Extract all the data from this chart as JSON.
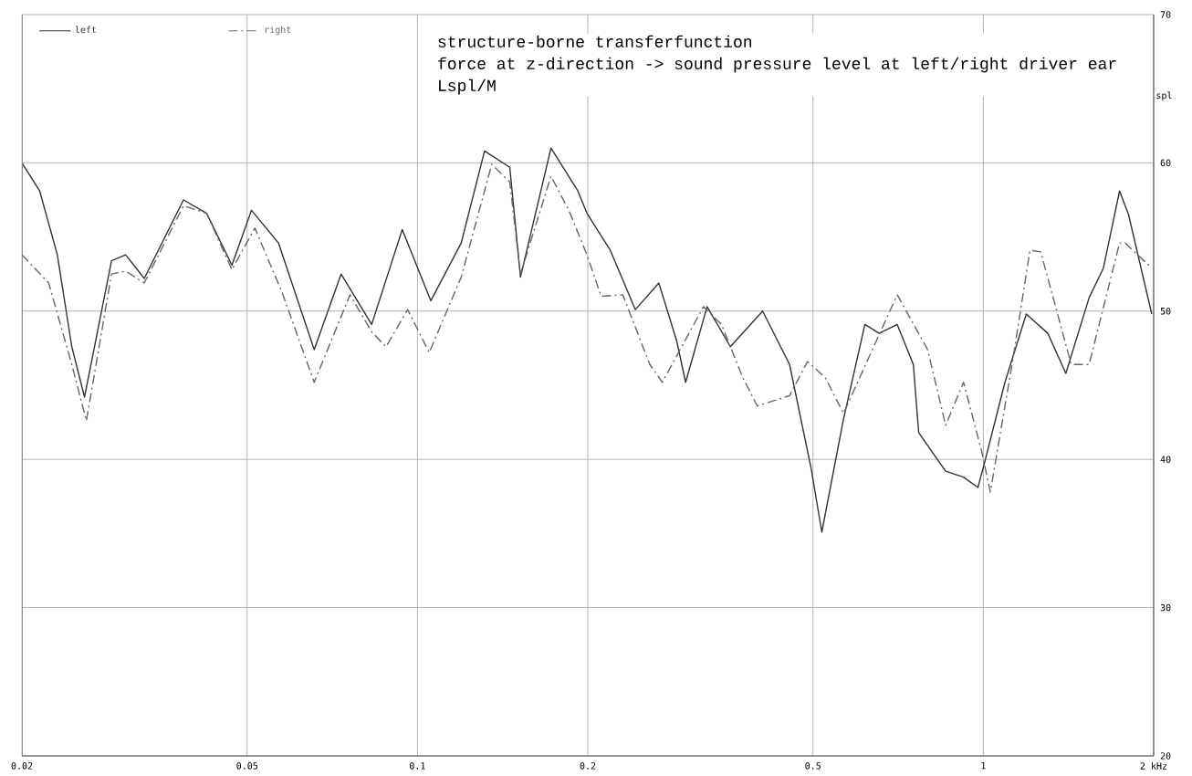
{
  "chart_data": {
    "type": "line",
    "title": "structure-borne transferfunction",
    "subtitle": "force at z-direction -> sound pressure level at left/right driver ear",
    "annotations": [
      "Lspl/M"
    ],
    "ylabel": "spl",
    "log": "x",
    "xlim": [
      0.02,
      2
    ],
    "ylim": [
      20,
      70
    ],
    "xticks": [
      0.02,
      0.05,
      0.1,
      0.2,
      0.5,
      1,
      {
        "value": 2,
        "label": "2 kHz"
      }
    ],
    "yticks": [
      20,
      30,
      40,
      50,
      60,
      70
    ],
    "grid": true,
    "legend": "top left",
    "marker": "none",
    "series": [
      {
        "name": "left",
        "color": "#333333",
        "line_style": "solid",
        "x": [
          0.02,
          0.0215,
          0.0231,
          0.0245,
          0.0258,
          0.0288,
          0.0305,
          0.0329,
          0.0386,
          0.0424,
          0.047,
          0.0509,
          0.0568,
          0.0657,
          0.0733,
          0.083,
          0.094,
          0.1056,
          0.1195,
          0.1314,
          0.1456,
          0.1521,
          0.1722,
          0.1921,
          0.1993,
          0.2192,
          0.2427,
          0.267,
          0.2871,
          0.2978,
          0.325,
          0.3573,
          0.4074,
          0.4546,
          0.4962,
          0.5183,
          0.566,
          0.6177,
          0.6546,
          0.7046,
          0.7522,
          0.7688,
          0.8579,
          0.9226,
          0.9782,
          1.007,
          1.092,
          1.191,
          1.3,
          1.399,
          1.538,
          1.63,
          1.741,
          1.806,
          1.985
        ],
        "values": [
          60,
          58.1,
          53.8,
          47.6,
          44.2,
          53.4,
          53.8,
          52.2,
          57.5,
          56.6,
          53.1,
          56.8,
          54.6,
          47.4,
          52.5,
          49.1,
          55.5,
          50.7,
          54.6,
          60.8,
          59.7,
          52.3,
          61.0,
          58.1,
          56.6,
          54.1,
          50.1,
          51.9,
          48,
          45.2,
          50.3,
          47.6,
          50,
          46.4,
          39.4,
          35.1,
          42.7,
          49.1,
          48.5,
          49.1,
          46.4,
          41.8,
          39.2,
          38.8,
          38.1,
          39.9,
          45.2,
          49.8,
          48.5,
          45.8,
          50.9,
          52.9,
          58.1,
          56.5,
          49.8
        ]
      },
      {
        "name": "right",
        "color": "#666666",
        "line_style": "dashed",
        "x": [
          0.02,
          0.0223,
          0.0245,
          0.026,
          0.0288,
          0.0305,
          0.0329,
          0.0386,
          0.0424,
          0.047,
          0.0516,
          0.0576,
          0.0657,
          0.076,
          0.083,
          0.088,
          0.0961,
          0.1049,
          0.1195,
          0.1353,
          0.1456,
          0.1521,
          0.1722,
          0.1852,
          0.1993,
          0.2112,
          0.2306,
          0.2574,
          0.2709,
          0.3202,
          0.3446,
          0.376,
          0.3987,
          0.4546,
          0.489,
          0.526,
          0.566,
          0.7046,
          0.7973,
          0.8579,
          0.9226,
          0.9925,
          1.029,
          1.124,
          1.209,
          1.263,
          1.43,
          1.538,
          1.741,
          1.78,
          1.985
        ],
        "values": [
          53.8,
          51.9,
          46.4,
          42.6,
          52.5,
          52.7,
          51.9,
          57.1,
          56.6,
          52.8,
          55.6,
          51.3,
          45.2,
          51.1,
          48.6,
          47.6,
          50.1,
          47.2,
          52.3,
          59.9,
          58.7,
          52.5,
          59.1,
          56.8,
          53.8,
          51,
          51.1,
          46.4,
          45.2,
          50.3,
          49.1,
          45.5,
          43.6,
          44.3,
          46.6,
          45.5,
          43.1,
          51.1,
          47.4,
          42.3,
          45.2,
          40.6,
          37.8,
          46.4,
          54.1,
          54,
          46.4,
          46.4,
          54.6,
          54.6,
          52.9
        ]
      }
    ]
  }
}
